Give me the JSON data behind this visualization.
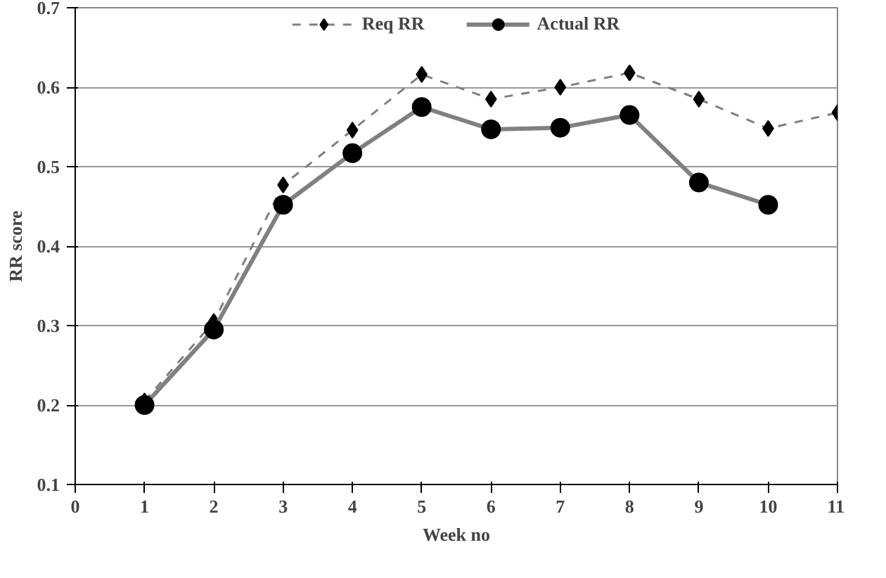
{
  "chart_data": {
    "type": "line",
    "xlabel": "Week no",
    "ylabel": "RR score",
    "x": [
      1,
      2,
      3,
      4,
      5,
      6,
      7,
      8,
      9,
      10,
      11
    ],
    "series": [
      {
        "name": "Req RR",
        "color": "#808080",
        "marker": "diamond",
        "line_style": "dashed",
        "values": [
          0.205,
          0.305,
          0.477,
          0.546,
          0.616,
          0.585,
          0.6,
          0.618,
          0.585,
          0.548,
          0.568
        ]
      },
      {
        "name": "Actual RR",
        "color": "#808080",
        "marker": "circle",
        "line_style": "solid",
        "values": [
          0.2,
          0.295,
          0.452,
          0.517,
          0.575,
          0.547,
          0.549,
          0.565,
          0.48,
          0.452,
          null
        ]
      }
    ],
    "xlim": [
      0,
      11
    ],
    "xticks": [
      0,
      1,
      2,
      3,
      4,
      5,
      6,
      7,
      8,
      9,
      10,
      11
    ],
    "ylim": [
      0.1,
      0.7
    ],
    "yticks": [
      0.1,
      0.2,
      0.3,
      0.4,
      0.5,
      0.6,
      0.7
    ],
    "grid": "y",
    "legend": "top"
  }
}
